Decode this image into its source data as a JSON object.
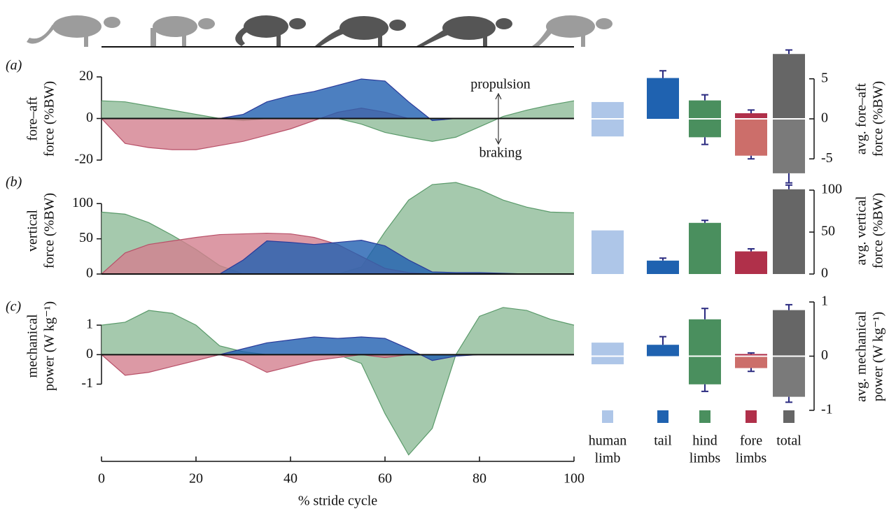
{
  "x_axis": {
    "label": "% stride cycle",
    "xlim": [
      0,
      100
    ],
    "xticks": [
      0,
      20,
      40,
      60,
      80,
      100
    ]
  },
  "legend": {
    "labels": [
      [
        "human",
        "limb"
      ],
      [
        "tail"
      ],
      [
        "hind",
        "limbs"
      ],
      [
        "fore",
        "limbs"
      ],
      [
        "total"
      ]
    ],
    "colors": [
      "#aec6e8",
      "#1f62b0",
      "#4a8f5e",
      "#b0304a",
      "#666666"
    ]
  },
  "chart_data": [
    {
      "type": "area",
      "panel": "(a)",
      "ylabel": [
        "fore–aft",
        "force (%BW)"
      ],
      "annotations": [
        "propulsion",
        "braking"
      ],
      "x": [
        0,
        5,
        10,
        15,
        20,
        25,
        30,
        35,
        40,
        45,
        50,
        55,
        60,
        65,
        70,
        75,
        80,
        85,
        90,
        95,
        100
      ],
      "ylim": [
        -20,
        20
      ],
      "yticks": [
        -20,
        0,
        20
      ],
      "series": [
        {
          "name": "hind limbs",
          "color": "#8fbc98",
          "stroke": "#5a9a6a",
          "values": [
            8.5,
            8,
            6,
            4,
            2,
            0,
            -1,
            0,
            0,
            0,
            0,
            -2.7,
            -6.7,
            -9,
            -11,
            -9,
            -4,
            1,
            4,
            6.5,
            8.5
          ]
        },
        {
          "name": "fore limbs",
          "color": "#d3808f",
          "stroke": "#b85068",
          "values": [
            0,
            -12,
            -14,
            -15,
            -15,
            -13,
            -11,
            -8,
            -5,
            -1,
            3,
            5,
            3,
            0,
            0,
            0,
            0,
            0,
            0,
            0,
            0
          ]
        },
        {
          "name": "tail",
          "color": "#1f5fb0",
          "stroke": "#2a3a9a",
          "values": [
            0,
            0,
            0,
            0,
            0,
            0,
            2,
            8,
            11,
            13,
            16,
            19,
            18,
            8,
            -1,
            0,
            0,
            0,
            0,
            0,
            0
          ]
        }
      ]
    },
    {
      "type": "bars",
      "ylabel": [
        "avg. fore–aft",
        "force (%BW)"
      ],
      "y2lim": [
        -5.5,
        5.5
      ],
      "y2ticks": [
        -5,
        0,
        5
      ],
      "positive": [
        2.1,
        5.1,
        2.3,
        0.7,
        8.1
      ],
      "negative": [
        -2.2,
        null,
        -2.3,
        -4.6,
        -6.8
      ],
      "pos_error": [
        null,
        0.9,
        0.7,
        0.4,
        0.5
      ],
      "neg_error": [
        null,
        null,
        0.9,
        0.4,
        1.2
      ],
      "colors_positive": [
        "#aec6e8",
        "#1f62b0",
        "#4a8f5e",
        "#b0304a",
        "#666666"
      ],
      "colors_negative": [
        "#aec6e8",
        "#1f62b0",
        "#4a8f5e",
        "#cc6e6a",
        "#7a7a7a"
      ]
    },
    {
      "type": "area",
      "panel": "(b)",
      "ylabel": [
        "vertical",
        "force (%BW)"
      ],
      "x": [
        0,
        5,
        10,
        15,
        20,
        25,
        30,
        35,
        40,
        45,
        50,
        55,
        60,
        65,
        70,
        75,
        80,
        85,
        90,
        95,
        100
      ],
      "ylim": [
        0,
        135
      ],
      "yticks": [
        0,
        50,
        100
      ],
      "series": [
        {
          "name": "hind limbs",
          "color": "#8fbc98",
          "stroke": "#5a9a6a",
          "values": [
            88,
            85,
            73,
            55,
            35,
            12,
            0,
            0,
            0,
            0,
            0,
            10,
            60,
            105,
            127,
            130,
            120,
            105,
            95,
            88,
            87
          ]
        },
        {
          "name": "fore limbs",
          "color": "#d3808f",
          "stroke": "#b85068",
          "values": [
            0,
            30,
            42,
            47,
            52,
            56,
            57,
            58,
            57,
            52,
            42,
            25,
            8,
            2,
            0,
            0,
            0,
            0,
            0,
            0,
            0
          ]
        },
        {
          "name": "tail",
          "color": "#1f5fb0",
          "stroke": "#2a3a9a",
          "values": [
            0,
            0,
            0,
            0,
            0,
            0,
            20,
            47,
            45,
            42,
            45,
            48,
            40,
            20,
            3,
            2,
            2,
            1,
            0,
            0,
            0
          ]
        }
      ]
    },
    {
      "type": "bars",
      "ylabel": [
        "avg. vertical",
        "force (%BW)"
      ],
      "y2lim": [
        0,
        105
      ],
      "y2ticks": [
        0,
        50,
        100
      ],
      "positive": [
        52,
        16,
        61,
        27,
        101
      ],
      "pos_error": [
        null,
        3,
        3,
        3,
        5
      ],
      "colors_positive": [
        "#aec6e8",
        "#1f62b0",
        "#4a8f5e",
        "#b0304a",
        "#666666"
      ]
    },
    {
      "type": "area",
      "panel": "(c)",
      "ylabel": [
        "mechanical",
        "power (W kg⁻¹)"
      ],
      "x": [
        0,
        5,
        10,
        15,
        20,
        25,
        30,
        35,
        40,
        45,
        50,
        55,
        60,
        65,
        70,
        75,
        80,
        85,
        90,
        95,
        100
      ],
      "ylim": [
        -3.5,
        1.7
      ],
      "yticks": [
        -1,
        0,
        1
      ],
      "series": [
        {
          "name": "hind limbs",
          "color": "#8fbc98",
          "stroke": "#5a9a6a",
          "values": [
            1,
            1.1,
            1.5,
            1.4,
            1,
            0.3,
            0.1,
            0,
            0,
            0,
            0,
            -0.3,
            -2,
            -3.4,
            -2.5,
            0,
            1.3,
            1.6,
            1.5,
            1.2,
            1
          ]
        },
        {
          "name": "fore limbs",
          "color": "#d3808f",
          "stroke": "#b85068",
          "values": [
            0,
            -0.7,
            -0.6,
            -0.4,
            -0.2,
            0,
            -0.2,
            -0.6,
            -0.4,
            -0.2,
            -0.1,
            0,
            -0.1,
            0,
            0,
            0,
            0,
            0,
            0,
            0,
            0
          ]
        },
        {
          "name": "tail",
          "color": "#1f5fb0",
          "stroke": "#2a3a9a",
          "values": [
            0,
            0,
            0,
            0,
            0,
            0,
            0.2,
            0.4,
            0.5,
            0.6,
            0.55,
            0.6,
            0.55,
            0.2,
            -0.2,
            -0.05,
            0,
            0,
            0,
            0,
            0
          ]
        }
      ]
    },
    {
      "type": "bars",
      "ylabel": [
        "avg. mechanical",
        "power (W kg⁻¹)"
      ],
      "y2lim": [
        -1,
        1
      ],
      "y2ticks": [
        -1,
        0,
        1
      ],
      "positive": [
        0.25,
        0.21,
        0.68,
        0.04,
        0.85
      ],
      "negative": [
        -0.15,
        null,
        -0.52,
        -0.22,
        -0.75
      ],
      "pos_error": [
        null,
        0.15,
        0.2,
        0.02,
        0.1
      ],
      "neg_error": [
        null,
        null,
        0.13,
        0.06,
        0.1
      ],
      "colors_positive": [
        "#aec6e8",
        "#1f62b0",
        "#4a8f5e",
        "#b0304a",
        "#666666"
      ],
      "colors_negative": [
        "#aec6e8",
        "#1f62b0",
        "#4a8f5e",
        "#cc6e6a",
        "#7a7a7a"
      ]
    }
  ]
}
